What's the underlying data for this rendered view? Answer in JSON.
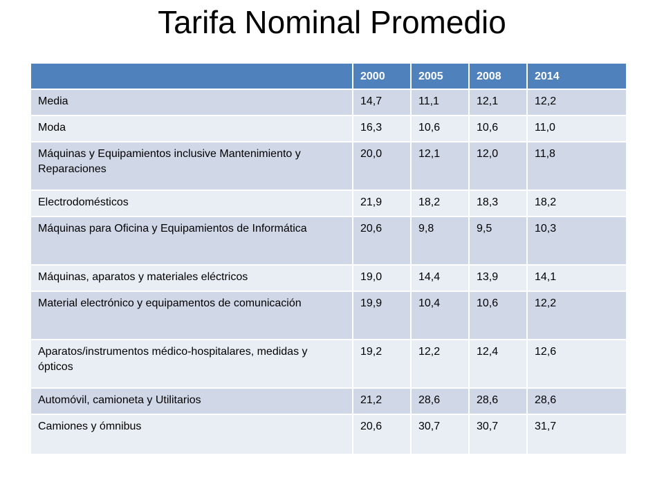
{
  "title": "Tarifa Nominal Promedio",
  "table": {
    "header": [
      "",
      "2000",
      "2005",
      "2008",
      "2014"
    ],
    "rows": [
      {
        "label": "Media",
        "values": [
          "14,7",
          "11,1",
          "12,1",
          "12,2"
        ]
      },
      {
        "label": "Moda",
        "values": [
          "16,3",
          "10,6",
          "10,6",
          "11,0"
        ]
      },
      {
        "label": "Máquinas y Equipamientos inclusive Mantenimiento y Reparaciones",
        "values": [
          "20,0",
          "12,1",
          "12,0",
          "11,8"
        ]
      },
      {
        "label": "Electrodomésticos",
        "values": [
          "21,9",
          "18,2",
          "18,3",
          "18,2"
        ]
      },
      {
        "label": "Máquinas para Oficina y Equipamientos de Informática",
        "values": [
          "20,6",
          "9,8",
          "9,5",
          "10,3"
        ]
      },
      {
        "label": "Máquinas, aparatos y materiales eléctricos",
        "values": [
          "19,0",
          "14,4",
          "13,9",
          "14,1"
        ]
      },
      {
        "label": "Material electrónico y equipamentos de comunicación",
        "values": [
          "19,9",
          "10,4",
          "10,6",
          "12,2"
        ]
      },
      {
        "label": "Aparatos/instrumentos médico-hospitalares, medidas y ópticos",
        "values": [
          "19,2",
          "12,2",
          "12,4",
          "12,6"
        ]
      },
      {
        "label": "Automóvil, camioneta y Utilitarios",
        "values": [
          "21,2",
          "28,6",
          "28,6",
          "28,6"
        ]
      },
      {
        "label": "Camiones y ómnibus",
        "values": [
          "20,6",
          "30,7",
          "30,7",
          "31,7"
        ]
      }
    ]
  },
  "colors": {
    "header_bg": "#4f81bd",
    "row_odd_bg": "#d0d8e8",
    "row_even_bg": "#e9edf4"
  }
}
